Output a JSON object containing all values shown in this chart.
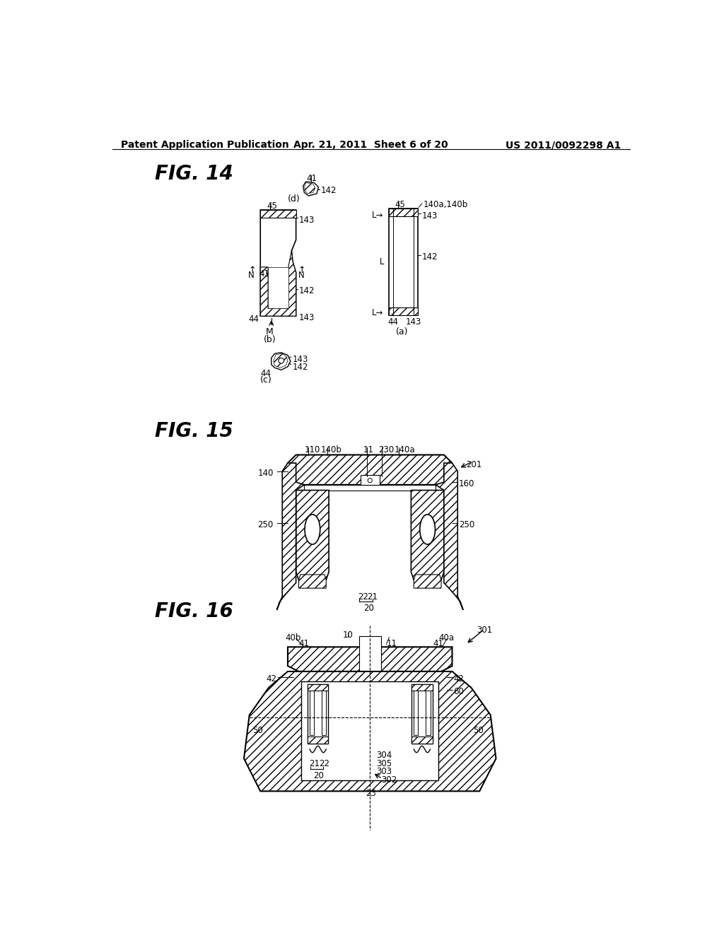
{
  "page_title_left": "Patent Application Publication",
  "page_title_center": "Apr. 21, 2011  Sheet 6 of 20",
  "page_title_right": "US 2011/0092298 A1",
  "fig14_label": "FIG. 14",
  "fig15_label": "FIG. 15",
  "fig16_label": "FIG. 16",
  "bg_color": "#ffffff"
}
